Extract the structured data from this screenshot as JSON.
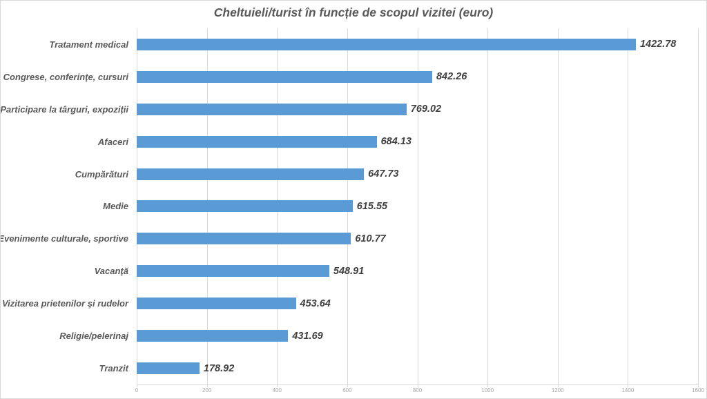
{
  "chart_data": {
    "type": "bar",
    "orientation": "horizontal",
    "title": "Cheltuieli/turist în funcție de scopul vizitei (euro)",
    "categories": [
      "Tratament medical",
      "Congrese, conferinţe, cursuri",
      "Participare la târguri, expoziții",
      "Afaceri",
      "Cumpărături",
      "Medie",
      "Evenimente culturale, sportive",
      "Vacanţă",
      "Vizitarea prietenilor şi rudelor",
      "Religie/pelerinaj",
      "Tranzit"
    ],
    "values": [
      1422.78,
      842.26,
      769.02,
      684.13,
      647.73,
      615.55,
      610.77,
      548.91,
      453.64,
      431.69,
      178.92
    ],
    "value_labels": [
      "1422.78",
      "842.26",
      "769.02",
      "684.13",
      "647.73",
      "615.55",
      "610.77",
      "548.91",
      "453.64",
      "431.69",
      "178.92"
    ],
    "xlabel": "",
    "ylabel": "",
    "xlim": [
      0,
      1600
    ],
    "xticks": [
      0,
      200,
      400,
      600,
      800,
      1000,
      1200,
      1400,
      1600
    ],
    "grid": "vertical",
    "legend": "none",
    "colors": {
      "bar": "#5B9BD5",
      "gridline": "#D9D9D9",
      "title_text": "#595959",
      "category_text": "#595959",
      "value_text": "#404040",
      "tick_text": "#A6A6A6",
      "border": "#D9D9D9",
      "background": "#FFFFFF"
    }
  }
}
